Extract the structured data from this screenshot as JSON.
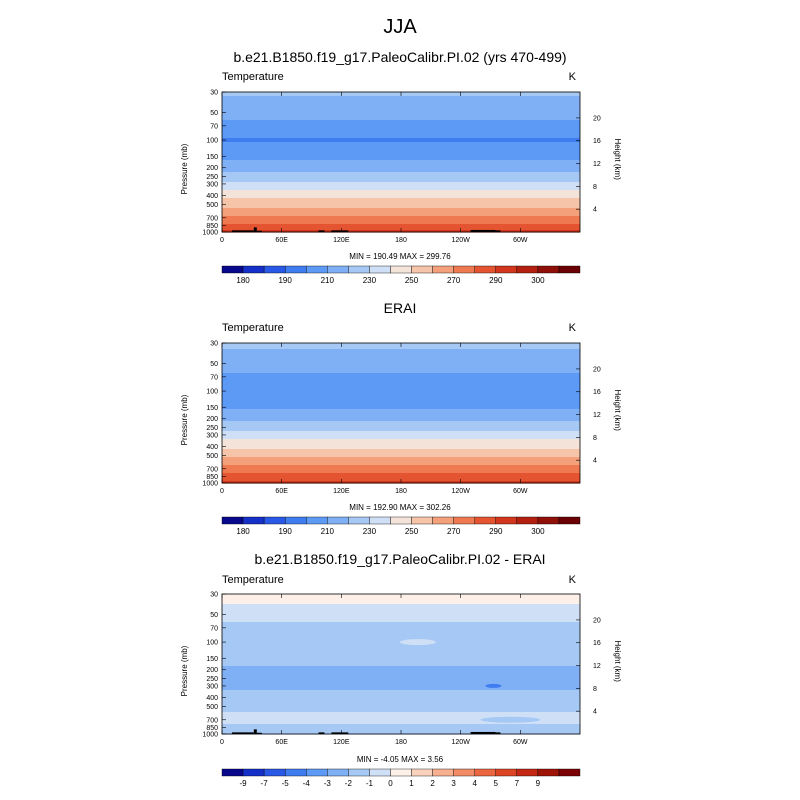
{
  "figure": {
    "title": "JJA",
    "colors": {
      "temp_scale": [
        "#08088c",
        "#1530c8",
        "#2a58e6",
        "#3f7cf0",
        "#5c9af5",
        "#7fb0f6",
        "#a6c8f4",
        "#cfe0f6",
        "#f4e3d8",
        "#f6c4a8",
        "#f4a07a",
        "#ef7a52",
        "#e55430",
        "#d2361c",
        "#b32010",
        "#8e1008",
        "#6a0004"
      ],
      "diff_scale": [
        "#08088c",
        "#1530c8",
        "#2a58e6",
        "#3f7cf0",
        "#5c9af5",
        "#7fb0f6",
        "#a6c8f4",
        "#cfe0f6",
        "#fdf0e8",
        "#f8d2bc",
        "#f6b090",
        "#f28c66",
        "#eb6640",
        "#dd4424",
        "#c42814",
        "#a01408",
        "#7a0004"
      ],
      "topography": "#000000"
    }
  },
  "chart_data": [
    {
      "type": "heatmap",
      "title": "b.e21.B1850.f19_g17.PaleoCalibr.PI.02 (yrs 470-499)",
      "left_label": "Temperature",
      "right_label": "K",
      "ylabel": "Pressure (mb)",
      "ylabel_right": "Height (km)",
      "x_ticks": [
        "0",
        "60E",
        "120E",
        "180",
        "120W",
        "60W"
      ],
      "y_ticks": [
        "30",
        "50",
        "70",
        "100",
        "150",
        "200",
        "250",
        "300",
        "400",
        "500",
        "700",
        "850",
        "1000"
      ],
      "y2_ticks": [
        "20",
        "16",
        "12",
        "8",
        "4"
      ],
      "minmax": "MIN = 190.49  MAX = 299.76",
      "colorbar_ticks": [
        "180",
        "190",
        "210",
        "230",
        "250",
        "270",
        "290",
        "300"
      ],
      "temp_by_level": [
        {
          "p": 30,
          "t": 222
        },
        {
          "p": 50,
          "t": 213
        },
        {
          "p": 70,
          "t": 207
        },
        {
          "p": 100,
          "t": 199
        },
        {
          "p": 150,
          "t": 207
        },
        {
          "p": 200,
          "t": 216
        },
        {
          "p": 250,
          "t": 225
        },
        {
          "p": 300,
          "t": 232
        },
        {
          "p": 400,
          "t": 246
        },
        {
          "p": 500,
          "t": 257
        },
        {
          "p": 700,
          "t": 272
        },
        {
          "p": 850,
          "t": 282
        },
        {
          "p": 1000,
          "t": 292
        }
      ]
    },
    {
      "type": "heatmap",
      "title": "ERAI",
      "left_label": "Temperature",
      "right_label": "K",
      "ylabel": "Pressure (mb)",
      "ylabel_right": "Height (km)",
      "x_ticks": [
        "0",
        "60E",
        "120E",
        "180",
        "120W",
        "60W"
      ],
      "y_ticks": [
        "30",
        "50",
        "70",
        "100",
        "150",
        "200",
        "250",
        "300",
        "400",
        "500",
        "700",
        "850",
        "1000"
      ],
      "y2_ticks": [
        "20",
        "16",
        "12",
        "8",
        "4"
      ],
      "minmax": "MIN = 192.90  MAX = 302.26",
      "colorbar_ticks": [
        "180",
        "190",
        "210",
        "230",
        "250",
        "270",
        "290",
        "300"
      ],
      "temp_by_level": [
        {
          "p": 30,
          "t": 223
        },
        {
          "p": 50,
          "t": 214
        },
        {
          "p": 70,
          "t": 208
        },
        {
          "p": 100,
          "t": 200
        },
        {
          "p": 150,
          "t": 209
        },
        {
          "p": 200,
          "t": 218
        },
        {
          "p": 250,
          "t": 227
        },
        {
          "p": 300,
          "t": 234
        },
        {
          "p": 400,
          "t": 248
        },
        {
          "p": 500,
          "t": 259
        },
        {
          "p": 700,
          "t": 274
        },
        {
          "p": 850,
          "t": 284
        },
        {
          "p": 1000,
          "t": 294
        }
      ]
    },
    {
      "type": "heatmap",
      "title": "b.e21.B1850.f19_g17.PaleoCalibr.PI.02 - ERAI",
      "left_label": "Temperature",
      "right_label": "K",
      "ylabel": "Pressure (mb)",
      "ylabel_right": "Height (km)",
      "x_ticks": [
        "0",
        "60E",
        "120E",
        "180",
        "120W",
        "60W"
      ],
      "y_ticks": [
        "30",
        "50",
        "70",
        "100",
        "150",
        "200",
        "250",
        "300",
        "400",
        "500",
        "700",
        "850",
        "1000"
      ],
      "y2_ticks": [
        "20",
        "16",
        "12",
        "8",
        "4"
      ],
      "minmax": "MIN = -4.05  MAX =  3.56",
      "colorbar_ticks": [
        "-9",
        "-7",
        "-5",
        "-4",
        "-3",
        "-2",
        "-1",
        "0",
        "1",
        "2",
        "3",
        "4",
        "5",
        "7",
        "9"
      ],
      "diff_by_level": [
        {
          "p": 30,
          "d": 0.6
        },
        {
          "p": 50,
          "d": -0.6
        },
        {
          "p": 70,
          "d": -1.4
        },
        {
          "p": 100,
          "d": -1.6
        },
        {
          "p": 150,
          "d": -1.5
        },
        {
          "p": 200,
          "d": -2.3
        },
        {
          "p": 250,
          "d": -2.6
        },
        {
          "p": 300,
          "d": -2.2
        },
        {
          "p": 400,
          "d": -1.7
        },
        {
          "p": 500,
          "d": -1.4
        },
        {
          "p": 700,
          "d": -0.5
        },
        {
          "p": 850,
          "d": -1.3
        },
        {
          "p": 1000,
          "d": -1.8
        }
      ]
    }
  ]
}
